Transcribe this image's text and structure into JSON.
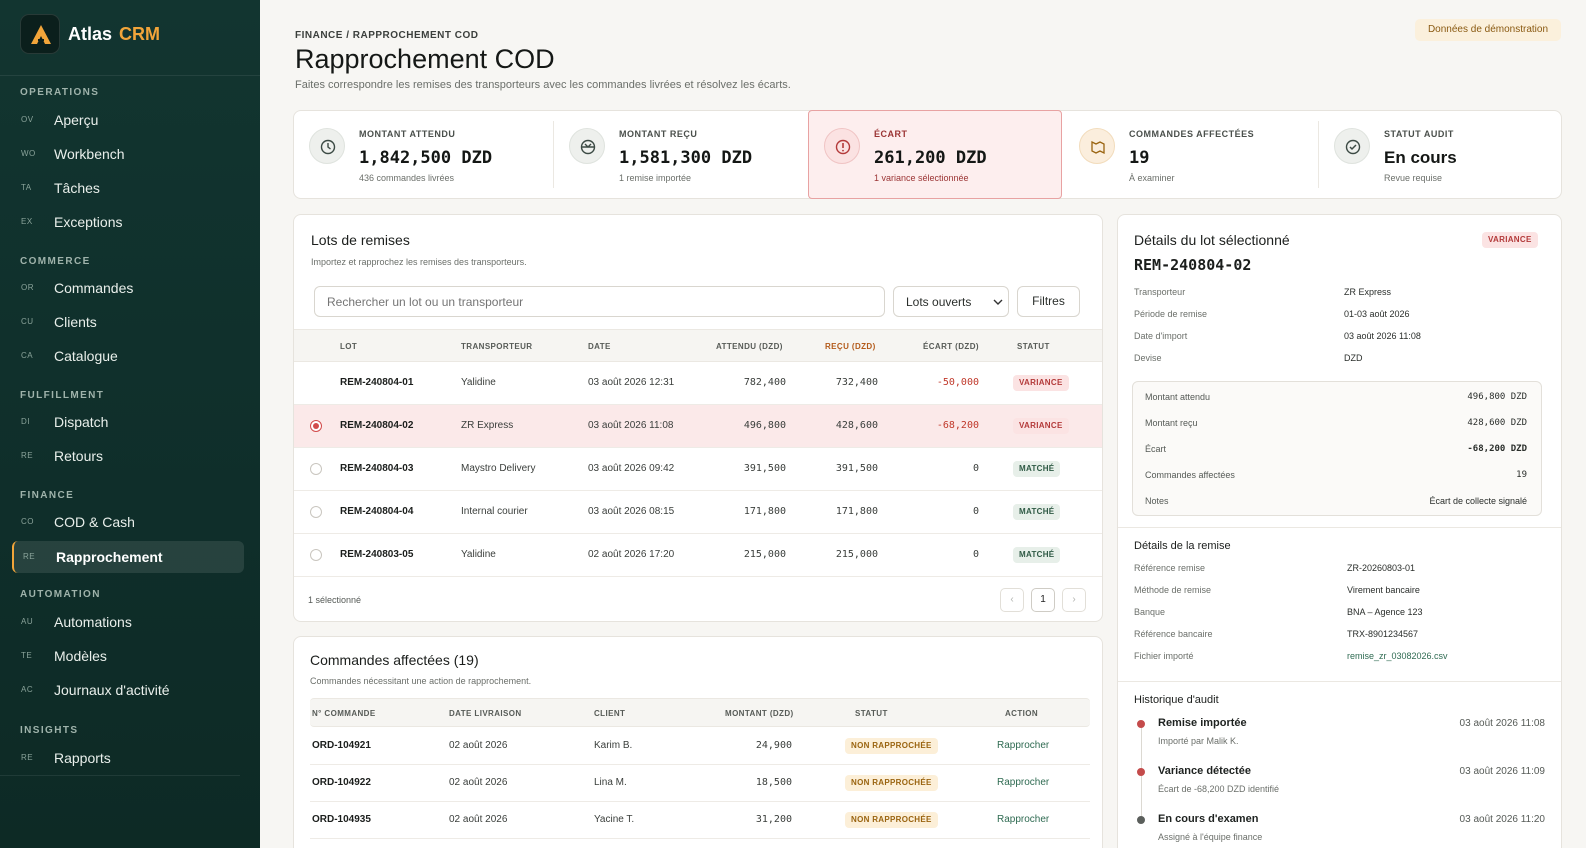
{
  "app": {
    "name": "Atlas",
    "accent": "CRM"
  },
  "sidebar": {
    "sections": [
      {
        "title": "OPERATIONS",
        "items": [
          {
            "abbr": "OV",
            "label": "Aperçu"
          },
          {
            "abbr": "WO",
            "label": "Workbench"
          },
          {
            "abbr": "TA",
            "label": "Tâches"
          },
          {
            "abbr": "EX",
            "label": "Exceptions"
          }
        ]
      },
      {
        "title": "COMMERCE",
        "items": [
          {
            "abbr": "OR",
            "label": "Commandes"
          },
          {
            "abbr": "CU",
            "label": "Clients"
          },
          {
            "abbr": "CA",
            "label": "Catalogue"
          }
        ]
      },
      {
        "title": "FULFILLMENT",
        "items": [
          {
            "abbr": "DI",
            "label": "Dispatch"
          },
          {
            "abbr": "RE",
            "label": "Retours"
          }
        ]
      },
      {
        "title": "FINANCE",
        "items": [
          {
            "abbr": "CO",
            "label": "COD & Cash"
          },
          {
            "abbr": "RE",
            "label": "Rapprochement"
          }
        ]
      },
      {
        "title": "AUTOMATION",
        "items": [
          {
            "abbr": "AU",
            "label": "Automations"
          },
          {
            "abbr": "TE",
            "label": "Modèles"
          },
          {
            "abbr": "AC",
            "label": "Journaux d'activité"
          }
        ]
      },
      {
        "title": "INSIGHTS",
        "items": [
          {
            "abbr": "RE",
            "label": "Rapports"
          }
        ]
      }
    ]
  },
  "header": {
    "breadcrumb": "FINANCE / RAPPROCHEMENT COD",
    "title": "Rapprochement COD",
    "subtitle": "Faites correspondre les remises des transporteurs avec les commandes livrées et résolvez les écarts.",
    "demo_badge": "Données de démonstration"
  },
  "kpis": [
    {
      "label": "MONTANT ATTENDU",
      "value": "1,842,500 DZD",
      "detail": "436 commandes livrées",
      "icon": "clock-icon"
    },
    {
      "label": "MONTANT REÇU",
      "value": "1,581,300 DZD",
      "detail": "1 remise importée",
      "icon": "wallet-icon"
    },
    {
      "label": "ÉCART",
      "value": "261,200 DZD",
      "detail": "1 variance sélectionnée",
      "icon": "alert-icon"
    },
    {
      "label": "COMMANDES AFFECTÉES",
      "value": "19",
      "detail": "À examiner",
      "icon": "map-icon"
    },
    {
      "label": "STATUT AUDIT",
      "value": "En cours",
      "detail": "Revue requise",
      "icon": "shield-check-icon"
    }
  ],
  "lots": {
    "title": "Lots de remises",
    "subtitle": "Importez et rapprochez les remises des transporteurs.",
    "search_placeholder": "Rechercher un lot ou un transporteur",
    "filter_select": "Lots ouverts",
    "filters_button": "Filtres",
    "columns": {
      "lot": "LOT",
      "carrier": "TRANSPORTEUR",
      "date": "DATE",
      "expected": "ATTENDU (DZD)",
      "received": "REÇU (DZD)",
      "gap": "ÉCART (DZD)",
      "status": "STATUT"
    },
    "rows": [
      {
        "lot": "REM-240804-01",
        "carrier": "Yalidine",
        "date": "03 août 2026 12:31",
        "expected": "782,400",
        "received": "732,400",
        "gap": "-50,000",
        "status": "VARIANCE"
      },
      {
        "lot": "REM-240804-02",
        "carrier": "ZR Express",
        "date": "03 août 2026 11:08",
        "expected": "496,800",
        "received": "428,600",
        "gap": "-68,200",
        "status": "VARIANCE"
      },
      {
        "lot": "REM-240804-03",
        "carrier": "Maystro Delivery",
        "date": "03 août 2026 09:42",
        "expected": "391,500",
        "received": "391,500",
        "gap": "0",
        "status": "MATCHÉ"
      },
      {
        "lot": "REM-240804-04",
        "carrier": "Internal courier",
        "date": "03 août 2026 08:15",
        "expected": "171,800",
        "received": "171,800",
        "gap": "0",
        "status": "MATCHÉ"
      },
      {
        "lot": "REM-240803-05",
        "carrier": "Yalidine",
        "date": "02 août 2026 17:20",
        "expected": "215,000",
        "received": "215,000",
        "gap": "0",
        "status": "MATCHÉ"
      }
    ],
    "selected_count": "1 sélectionné",
    "page": "1",
    "prev": "‹",
    "next": "›"
  },
  "orders": {
    "title": "Commandes affectées (19)",
    "subtitle": "Commandes nécessitant une action de rapprochement.",
    "columns": {
      "id": "N° COMMANDE",
      "date": "DATE LIVRAISON",
      "client": "CLIENT",
      "amount": "MONTANT (DZD)",
      "status": "STATUT",
      "action": "ACTION"
    },
    "rows": [
      {
        "id": "ORD-104921",
        "date": "02 août 2026",
        "client": "Karim B.",
        "amount": "24,900",
        "status": "NON RAPPROCHÉE",
        "action": "Rapprocher"
      },
      {
        "id": "ORD-104922",
        "date": "02 août 2026",
        "client": "Lina M.",
        "amount": "18,500",
        "status": "NON RAPPROCHÉE",
        "action": "Rapprocher"
      },
      {
        "id": "ORD-104935",
        "date": "02 août 2026",
        "client": "Yacine T.",
        "amount": "31,200",
        "status": "NON RAPPROCHÉE",
        "action": "Rapprocher"
      }
    ]
  },
  "details": {
    "title": "Détails du lot sélectionné",
    "badge": "VARIANCE",
    "lot_id": "REM-240804-02",
    "fields": [
      {
        "label": "Transporteur",
        "value": "ZR Express"
      },
      {
        "label": "Période de remise",
        "value": "01-03 août 2026"
      },
      {
        "label": "Date d'import",
        "value": "03 août 2026 11:08"
      },
      {
        "label": "Devise",
        "value": "DZD"
      }
    ],
    "summary": [
      {
        "label": "Montant attendu",
        "value": "496,800 DZD"
      },
      {
        "label": "Montant reçu",
        "value": "428,600 DZD"
      },
      {
        "label": "Écart",
        "value": "-68,200 DZD"
      },
      {
        "label": "Commandes affectées",
        "value": "19"
      },
      {
        "label": "Notes",
        "value": "Écart de collecte signalé"
      }
    ],
    "remittance_title": "Détails de la remise",
    "remittance": [
      {
        "label": "Référence remise",
        "value": "ZR-20260803-01"
      },
      {
        "label": "Méthode de remise",
        "value": "Virement bancaire"
      },
      {
        "label": "Banque",
        "value": "BNA – Agence 123"
      },
      {
        "label": "Référence bancaire",
        "value": "TRX-8901234567"
      },
      {
        "label": "Fichier importé",
        "value": "remise_zr_03082026.csv"
      }
    ],
    "audit_title": "Historique d'audit",
    "audit": [
      {
        "title": "Remise importée",
        "sub": "Importé par Malik K.",
        "date": "03 août 2026 11:08"
      },
      {
        "title": "Variance détectée",
        "sub": "Écart de -68,200 DZD identifié",
        "date": "03 août 2026 11:09"
      },
      {
        "title": "En cours d'examen",
        "sub": "Assigné à l'équipe finance",
        "date": "03 août 2026 11:20"
      }
    ]
  },
  "colors": {
    "sidebar": "#123530",
    "accent": "#f2a53a",
    "danger": "#c0392b",
    "success": "#2f5a45"
  }
}
